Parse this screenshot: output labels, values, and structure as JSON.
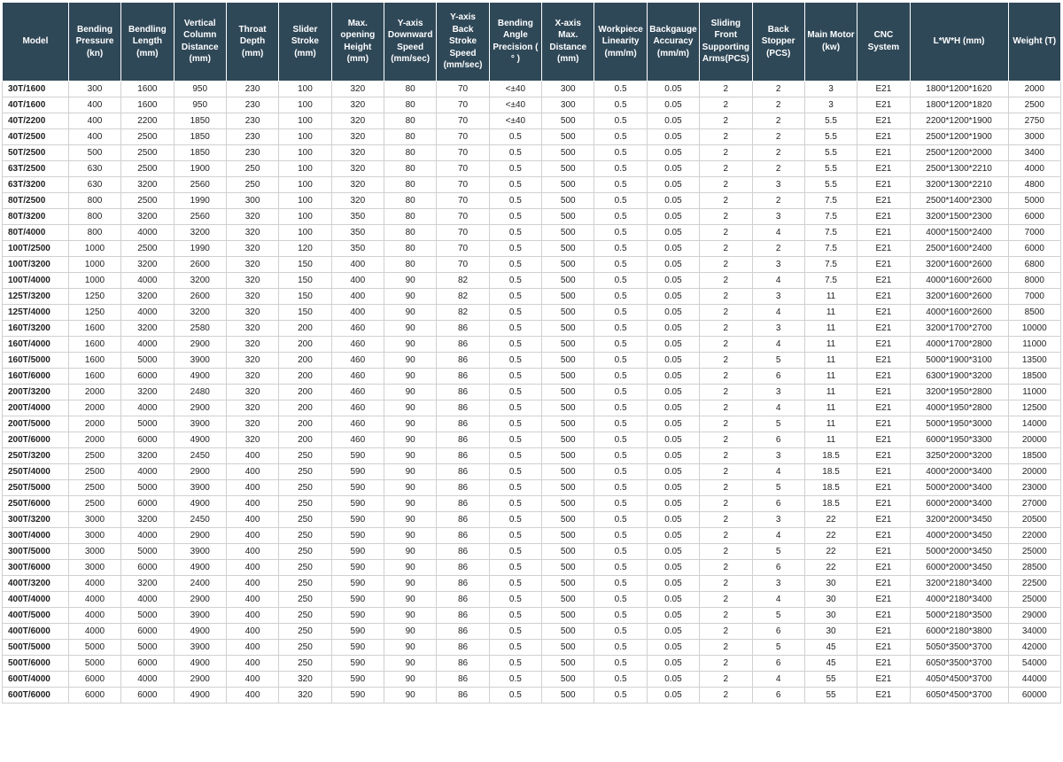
{
  "table": {
    "header_bg": "#2f4858",
    "header_fg": "#ffffff",
    "row_border": "#d0d0d0",
    "columns": [
      "Model",
      "Bending Pressure (kn)",
      "Bendling Length (mm)",
      "Vertical Column Distance (mm)",
      "Throat Depth (mm)",
      "Slider Stroke (mm)",
      "Max. opening Height (mm)",
      "Y-axis Downward Speed (mm/sec)",
      "Y-axis Back Stroke Speed (mm/sec)",
      "Bending Angle Precision ( ° )",
      "X-axis Max. Distance (mm)",
      "Workpiece Linearity (mm/m)",
      "Backgauge Accuracy (mm/m)",
      "Sliding Front Supporting Arms(PCS)",
      "Back Stopper (PCS)",
      "Main Motor (kw)",
      "CNC System",
      "L*W*H (mm)",
      "Weight (T)"
    ],
    "rows": [
      [
        "30T/1600",
        "300",
        "1600",
        "950",
        "230",
        "100",
        "320",
        "80",
        "70",
        "<±40",
        "300",
        "0.5",
        "0.05",
        "2",
        "2",
        "3",
        "E21",
        "1800*1200*1620",
        "2000"
      ],
      [
        "40T/1600",
        "400",
        "1600",
        "950",
        "230",
        "100",
        "320",
        "80",
        "70",
        "<±40",
        "300",
        "0.5",
        "0.05",
        "2",
        "2",
        "3",
        "E21",
        "1800*1200*1820",
        "2500"
      ],
      [
        "40T/2200",
        "400",
        "2200",
        "1850",
        "230",
        "100",
        "320",
        "80",
        "70",
        "<±40",
        "500",
        "0.5",
        "0.05",
        "2",
        "2",
        "5.5",
        "E21",
        "2200*1200*1900",
        "2750"
      ],
      [
        "40T/2500",
        "400",
        "2500",
        "1850",
        "230",
        "100",
        "320",
        "80",
        "70",
        "0.5",
        "500",
        "0.5",
        "0.05",
        "2",
        "2",
        "5.5",
        "E21",
        "2500*1200*1900",
        "3000"
      ],
      [
        "50T/2500",
        "500",
        "2500",
        "1850",
        "230",
        "100",
        "320",
        "80",
        "70",
        "0.5",
        "500",
        "0.5",
        "0.05",
        "2",
        "2",
        "5.5",
        "E21",
        "2500*1200*2000",
        "3400"
      ],
      [
        "63T/2500",
        "630",
        "2500",
        "1900",
        "250",
        "100",
        "320",
        "80",
        "70",
        "0.5",
        "500",
        "0.5",
        "0.05",
        "2",
        "2",
        "5.5",
        "E21",
        "2500*1300*2210",
        "4000"
      ],
      [
        "63T/3200",
        "630",
        "3200",
        "2560",
        "250",
        "100",
        "320",
        "80",
        "70",
        "0.5",
        "500",
        "0.5",
        "0.05",
        "2",
        "3",
        "5.5",
        "E21",
        "3200*1300*2210",
        "4800"
      ],
      [
        "80T/2500",
        "800",
        "2500",
        "1990",
        "300",
        "100",
        "320",
        "80",
        "70",
        "0.5",
        "500",
        "0.5",
        "0.05",
        "2",
        "2",
        "7.5",
        "E21",
        "2500*1400*2300",
        "5000"
      ],
      [
        "80T/3200",
        "800",
        "3200",
        "2560",
        "320",
        "100",
        "350",
        "80",
        "70",
        "0.5",
        "500",
        "0.5",
        "0.05",
        "2",
        "3",
        "7.5",
        "E21",
        "3200*1500*2300",
        "6000"
      ],
      [
        "80T/4000",
        "800",
        "4000",
        "3200",
        "320",
        "100",
        "350",
        "80",
        "70",
        "0.5",
        "500",
        "0.5",
        "0.05",
        "2",
        "4",
        "7.5",
        "E21",
        "4000*1500*2400",
        "7000"
      ],
      [
        "100T/2500",
        "1000",
        "2500",
        "1990",
        "320",
        "120",
        "350",
        "80",
        "70",
        "0.5",
        "500",
        "0.5",
        "0.05",
        "2",
        "2",
        "7.5",
        "E21",
        "2500*1600*2400",
        "6000"
      ],
      [
        "100T/3200",
        "1000",
        "3200",
        "2600",
        "320",
        "150",
        "400",
        "80",
        "70",
        "0.5",
        "500",
        "0.5",
        "0.05",
        "2",
        "3",
        "7.5",
        "E21",
        "3200*1600*2600",
        "6800"
      ],
      [
        "100T/4000",
        "1000",
        "4000",
        "3200",
        "320",
        "150",
        "400",
        "90",
        "82",
        "0.5",
        "500",
        "0.5",
        "0.05",
        "2",
        "4",
        "7.5",
        "E21",
        "4000*1600*2600",
        "8000"
      ],
      [
        "125T/3200",
        "1250",
        "3200",
        "2600",
        "320",
        "150",
        "400",
        "90",
        "82",
        "0.5",
        "500",
        "0.5",
        "0.05",
        "2",
        "3",
        "11",
        "E21",
        "3200*1600*2600",
        "7000"
      ],
      [
        "125T/4000",
        "1250",
        "4000",
        "3200",
        "320",
        "150",
        "400",
        "90",
        "82",
        "0.5",
        "500",
        "0.5",
        "0.05",
        "2",
        "4",
        "11",
        "E21",
        "4000*1600*2600",
        "8500"
      ],
      [
        "160T/3200",
        "1600",
        "3200",
        "2580",
        "320",
        "200",
        "460",
        "90",
        "86",
        "0.5",
        "500",
        "0.5",
        "0.05",
        "2",
        "3",
        "11",
        "E21",
        "3200*1700*2700",
        "10000"
      ],
      [
        "160T/4000",
        "1600",
        "4000",
        "2900",
        "320",
        "200",
        "460",
        "90",
        "86",
        "0.5",
        "500",
        "0.5",
        "0.05",
        "2",
        "4",
        "11",
        "E21",
        "4000*1700*2800",
        "11000"
      ],
      [
        "160T/5000",
        "1600",
        "5000",
        "3900",
        "320",
        "200",
        "460",
        "90",
        "86",
        "0.5",
        "500",
        "0.5",
        "0.05",
        "2",
        "5",
        "11",
        "E21",
        "5000*1900*3100",
        "13500"
      ],
      [
        "160T/6000",
        "1600",
        "6000",
        "4900",
        "320",
        "200",
        "460",
        "90",
        "86",
        "0.5",
        "500",
        "0.5",
        "0.05",
        "2",
        "6",
        "11",
        "E21",
        "6300*1900*3200",
        "18500"
      ],
      [
        "200T/3200",
        "2000",
        "3200",
        "2480",
        "320",
        "200",
        "460",
        "90",
        "86",
        "0.5",
        "500",
        "0.5",
        "0.05",
        "2",
        "3",
        "11",
        "E21",
        "3200*1950*2800",
        "11000"
      ],
      [
        "200T/4000",
        "2000",
        "4000",
        "2900",
        "320",
        "200",
        "460",
        "90",
        "86",
        "0.5",
        "500",
        "0.5",
        "0.05",
        "2",
        "4",
        "11",
        "E21",
        "4000*1950*2800",
        "12500"
      ],
      [
        "200T/5000",
        "2000",
        "5000",
        "3900",
        "320",
        "200",
        "460",
        "90",
        "86",
        "0.5",
        "500",
        "0.5",
        "0.05",
        "2",
        "5",
        "11",
        "E21",
        "5000*1950*3000",
        "14000"
      ],
      [
        "200T/6000",
        "2000",
        "6000",
        "4900",
        "320",
        "200",
        "460",
        "90",
        "86",
        "0.5",
        "500",
        "0.5",
        "0.05",
        "2",
        "6",
        "11",
        "E21",
        "6000*1950*3300",
        "20000"
      ],
      [
        "250T/3200",
        "2500",
        "3200",
        "2450",
        "400",
        "250",
        "590",
        "90",
        "86",
        "0.5",
        "500",
        "0.5",
        "0.05",
        "2",
        "3",
        "18.5",
        "E21",
        "3250*2000*3200",
        "18500"
      ],
      [
        "250T/4000",
        "2500",
        "4000",
        "2900",
        "400",
        "250",
        "590",
        "90",
        "86",
        "0.5",
        "500",
        "0.5",
        "0.05",
        "2",
        "4",
        "18.5",
        "E21",
        "4000*2000*3400",
        "20000"
      ],
      [
        "250T/5000",
        "2500",
        "5000",
        "3900",
        "400",
        "250",
        "590",
        "90",
        "86",
        "0.5",
        "500",
        "0.5",
        "0.05",
        "2",
        "5",
        "18.5",
        "E21",
        "5000*2000*3400",
        "23000"
      ],
      [
        "250T/6000",
        "2500",
        "6000",
        "4900",
        "400",
        "250",
        "590",
        "90",
        "86",
        "0.5",
        "500",
        "0.5",
        "0.05",
        "2",
        "6",
        "18.5",
        "E21",
        "6000*2000*3400",
        "27000"
      ],
      [
        "300T/3200",
        "3000",
        "3200",
        "2450",
        "400",
        "250",
        "590",
        "90",
        "86",
        "0.5",
        "500",
        "0.5",
        "0.05",
        "2",
        "3",
        "22",
        "E21",
        "3200*2000*3450",
        "20500"
      ],
      [
        "300T/4000",
        "3000",
        "4000",
        "2900",
        "400",
        "250",
        "590",
        "90",
        "86",
        "0.5",
        "500",
        "0.5",
        "0.05",
        "2",
        "4",
        "22",
        "E21",
        "4000*2000*3450",
        "22000"
      ],
      [
        "300T/5000",
        "3000",
        "5000",
        "3900",
        "400",
        "250",
        "590",
        "90",
        "86",
        "0.5",
        "500",
        "0.5",
        "0.05",
        "2",
        "5",
        "22",
        "E21",
        "5000*2000*3450",
        "25000"
      ],
      [
        "300T/6000",
        "3000",
        "6000",
        "4900",
        "400",
        "250",
        "590",
        "90",
        "86",
        "0.5",
        "500",
        "0.5",
        "0.05",
        "2",
        "6",
        "22",
        "E21",
        "6000*2000*3450",
        "28500"
      ],
      [
        "400T/3200",
        "4000",
        "3200",
        "2400",
        "400",
        "250",
        "590",
        "90",
        "86",
        "0.5",
        "500",
        "0.5",
        "0.05",
        "2",
        "3",
        "30",
        "E21",
        "3200*2180*3400",
        "22500"
      ],
      [
        "400T/4000",
        "4000",
        "4000",
        "2900",
        "400",
        "250",
        "590",
        "90",
        "86",
        "0.5",
        "500",
        "0.5",
        "0.05",
        "2",
        "4",
        "30",
        "E21",
        "4000*2180*3400",
        "25000"
      ],
      [
        "400T/5000",
        "4000",
        "5000",
        "3900",
        "400",
        "250",
        "590",
        "90",
        "86",
        "0.5",
        "500",
        "0.5",
        "0.05",
        "2",
        "5",
        "30",
        "E21",
        "5000*2180*3500",
        "29000"
      ],
      [
        "400T/6000",
        "4000",
        "6000",
        "4900",
        "400",
        "250",
        "590",
        "90",
        "86",
        "0.5",
        "500",
        "0.5",
        "0.05",
        "2",
        "6",
        "30",
        "E21",
        "6000*2180*3800",
        "34000"
      ],
      [
        "500T/5000",
        "5000",
        "5000",
        "3900",
        "400",
        "250",
        "590",
        "90",
        "86",
        "0.5",
        "500",
        "0.5",
        "0.05",
        "2",
        "5",
        "45",
        "E21",
        "5050*3500*3700",
        "42000"
      ],
      [
        "500T/6000",
        "5000",
        "6000",
        "4900",
        "400",
        "250",
        "590",
        "90",
        "86",
        "0.5",
        "500",
        "0.5",
        "0.05",
        "2",
        "6",
        "45",
        "E21",
        "6050*3500*3700",
        "54000"
      ],
      [
        "600T/4000",
        "6000",
        "4000",
        "2900",
        "400",
        "320",
        "590",
        "90",
        "86",
        "0.5",
        "500",
        "0.5",
        "0.05",
        "2",
        "4",
        "55",
        "E21",
        "4050*4500*3700",
        "44000"
      ],
      [
        "600T/6000",
        "6000",
        "6000",
        "4900",
        "400",
        "320",
        "590",
        "90",
        "86",
        "0.5",
        "500",
        "0.5",
        "0.05",
        "2",
        "6",
        "55",
        "E21",
        "6050*4500*3700",
        "60000"
      ]
    ]
  }
}
